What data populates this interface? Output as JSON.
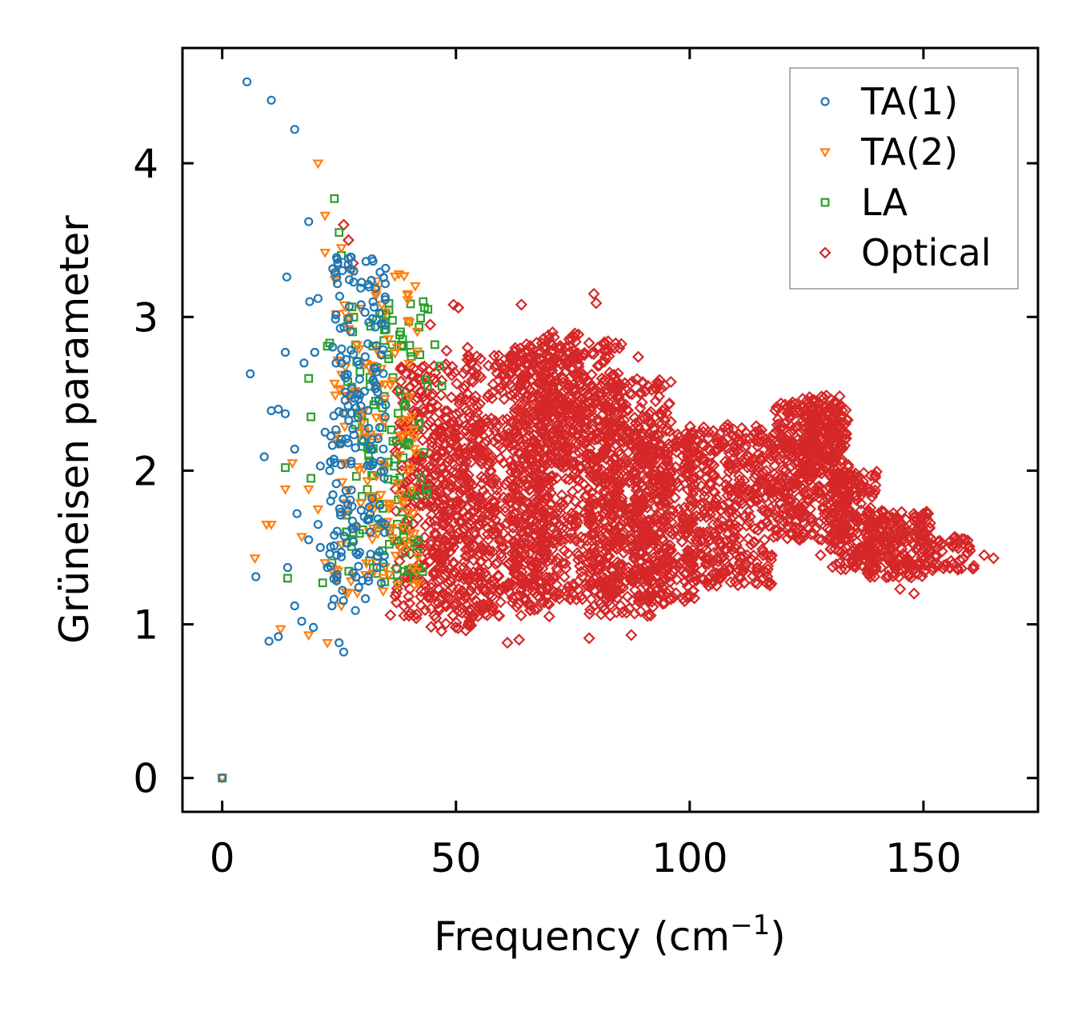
{
  "chart_data": {
    "type": "scatter",
    "title": "",
    "xlabel": "Frequency (cm",
    "xlabel_sup": "−1",
    "xlabel_close": ")",
    "ylabel": "Grüneisen parameter",
    "xlim": [
      -8.5,
      174.5
    ],
    "ylim": [
      -0.22,
      4.75
    ],
    "xticks": [
      0,
      50,
      100,
      150
    ],
    "yticks": [
      0,
      1,
      2,
      3,
      4
    ],
    "xtick_labels": [
      "0",
      "50",
      "100",
      "150"
    ],
    "ytick_labels": [
      "0",
      "1",
      "2",
      "3",
      "4"
    ],
    "legend_position": "top-right",
    "series": [
      {
        "name": "TA(1)",
        "marker": "circle",
        "color": "#1f77b4",
        "points": [
          [
            0,
            0
          ],
          [
            5.3,
            4.53
          ],
          [
            10.5,
            4.41
          ],
          [
            15.5,
            4.22
          ],
          [
            18.5,
            3.62
          ],
          [
            13.8,
            3.26
          ],
          [
            18.7,
            3.1
          ],
          [
            20.5,
            3.12
          ],
          [
            6,
            2.63
          ],
          [
            13.5,
            2.77
          ],
          [
            17.5,
            2.7
          ],
          [
            19.8,
            2.77
          ],
          [
            10.5,
            2.39
          ],
          [
            12,
            2.4
          ],
          [
            13.5,
            2.37
          ],
          [
            15.5,
            2.14
          ],
          [
            22,
            2.25
          ],
          [
            9,
            2.09
          ],
          [
            21,
            2.03
          ],
          [
            23,
            2.0
          ],
          [
            16,
            1.72
          ],
          [
            18.5,
            1.55
          ],
          [
            20.5,
            1.65
          ],
          [
            21,
            1.5
          ],
          [
            7.2,
            1.31
          ],
          [
            14,
            1.37
          ],
          [
            15.5,
            1.12
          ],
          [
            17,
            1.02
          ],
          [
            19.5,
            0.98
          ],
          [
            12,
            0.92
          ],
          [
            10,
            0.89
          ],
          [
            25,
            0.88
          ],
          [
            26,
            0.82
          ],
          [
            23.5,
            1.12
          ],
          [
            28.5,
            1.09
          ],
          [
            22.5,
            1.37
          ],
          [
            24.5,
            1.45
          ],
          [
            24,
            1.58
          ]
        ],
        "clusters": [
          {
            "x": [
              23,
              35
            ],
            "y": [
              1.15,
              3.4
            ],
            "n": 200
          }
        ]
      },
      {
        "name": "TA(2)",
        "marker": "triangle-down",
        "color": "#ff7f0e",
        "points": [
          [
            0,
            0
          ],
          [
            20.5,
            4.0
          ],
          [
            22,
            3.66
          ],
          [
            22,
            3.42
          ],
          [
            25.5,
            3.45
          ],
          [
            9.5,
            1.65
          ],
          [
            10.5,
            1.65
          ],
          [
            7,
            1.43
          ],
          [
            12.5,
            0.97
          ],
          [
            18.5,
            0.93
          ],
          [
            22.5,
            0.88
          ],
          [
            13.5,
            1.88
          ],
          [
            15,
            2.05
          ],
          [
            18.5,
            1.88
          ],
          [
            22,
            1.4
          ],
          [
            24,
            1.32
          ],
          [
            25.5,
            1.12
          ],
          [
            20.5,
            1.75
          ],
          [
            17,
            1.57
          ]
        ],
        "clusters": [
          {
            "x": [
              24,
              42
            ],
            "y": [
              1.2,
              3.3
            ],
            "n": 160
          }
        ]
      },
      {
        "name": "LA",
        "marker": "square",
        "color": "#2ca02c",
        "points": [
          [
            0,
            0
          ],
          [
            24,
            3.77
          ],
          [
            25,
            3.55
          ],
          [
            25.5,
            3.4
          ],
          [
            22.5,
            2.81
          ],
          [
            23,
            2.83
          ],
          [
            18.5,
            2.6
          ],
          [
            19,
            2.35
          ],
          [
            13.5,
            2.02
          ],
          [
            14,
            1.3
          ],
          [
            21.5,
            1.27
          ],
          [
            23.5,
            1.4
          ],
          [
            19,
            1.95
          ],
          [
            43,
            3.1
          ],
          [
            44,
            3.05
          ],
          [
            45.5,
            2.82
          ],
          [
            46.5,
            2.68
          ],
          [
            47,
            2.55
          ],
          [
            42,
            2.3
          ],
          [
            42,
            1.55
          ],
          [
            40.5,
            1.85
          ]
        ],
        "clusters": [
          {
            "x": [
              26,
              44
            ],
            "y": [
              1.25,
              3.1
            ],
            "n": 140
          }
        ]
      },
      {
        "name": "Optical",
        "marker": "diamond",
        "color": "#d62728",
        "points": [
          [
            26,
            3.6
          ],
          [
            27,
            3.5
          ],
          [
            28,
            3.35
          ],
          [
            36,
            1.06
          ],
          [
            41.5,
            1.04
          ],
          [
            44.5,
            2.95
          ],
          [
            48,
            2.78
          ],
          [
            49.5,
            3.08
          ],
          [
            50.5,
            3.06
          ],
          [
            52.5,
            2.8
          ],
          [
            61,
            0.88
          ],
          [
            63.5,
            0.9
          ],
          [
            78.5,
            0.91
          ],
          [
            87.5,
            0.93
          ],
          [
            64,
            3.08
          ],
          [
            79.5,
            3.15
          ],
          [
            80,
            3.09
          ],
          [
            89,
            2.74
          ],
          [
            101,
            1.17
          ],
          [
            163,
            1.45
          ],
          [
            165,
            1.43
          ],
          [
            160,
            1.48
          ],
          [
            148,
            1.2
          ],
          [
            145,
            1.23
          ],
          [
            138.5,
            1.35
          ],
          [
            135,
            1.42
          ],
          [
            128,
            1.45
          ],
          [
            116,
            1.55
          ],
          [
            104,
            1.25
          ]
        ],
        "clusters": [
          {
            "x": [
              37,
              52
            ],
            "y": [
              1.05,
              2.7
            ],
            "n": 330
          },
          {
            "x": [
              44,
              56
            ],
            "y": [
              0.95,
              2.3
            ],
            "n": 200
          },
          {
            "x": [
              52,
              70
            ],
            "y": [
              1.05,
              2.75
            ],
            "n": 480
          },
          {
            "x": [
              62,
              86
            ],
            "y": [
              1.15,
              2.85
            ],
            "n": 700
          },
          {
            "x": [
              68,
              77
            ],
            "y": [
              2.0,
              2.9
            ],
            "n": 160
          },
          {
            "x": [
              78,
              96
            ],
            "y": [
              1.05,
              2.6
            ],
            "n": 470
          },
          {
            "x": [
              88,
              101
            ],
            "y": [
              1.15,
              2.25
            ],
            "n": 300
          },
          {
            "x": [
              99,
              118
            ],
            "y": [
              1.25,
              2.3
            ],
            "n": 420
          },
          {
            "x": [
              118,
              134
            ],
            "y": [
              1.55,
              2.45
            ],
            "n": 400
          },
          {
            "x": [
              124,
              133
            ],
            "y": [
              2.0,
              2.5
            ],
            "n": 120
          },
          {
            "x": [
              130,
              140
            ],
            "y": [
              1.35,
              2.0
            ],
            "n": 200
          },
          {
            "x": [
              138,
              152
            ],
            "y": [
              1.3,
              1.75
            ],
            "n": 200
          },
          {
            "x": [
              149,
              161
            ],
            "y": [
              1.35,
              1.58
            ],
            "n": 60
          }
        ]
      }
    ]
  }
}
